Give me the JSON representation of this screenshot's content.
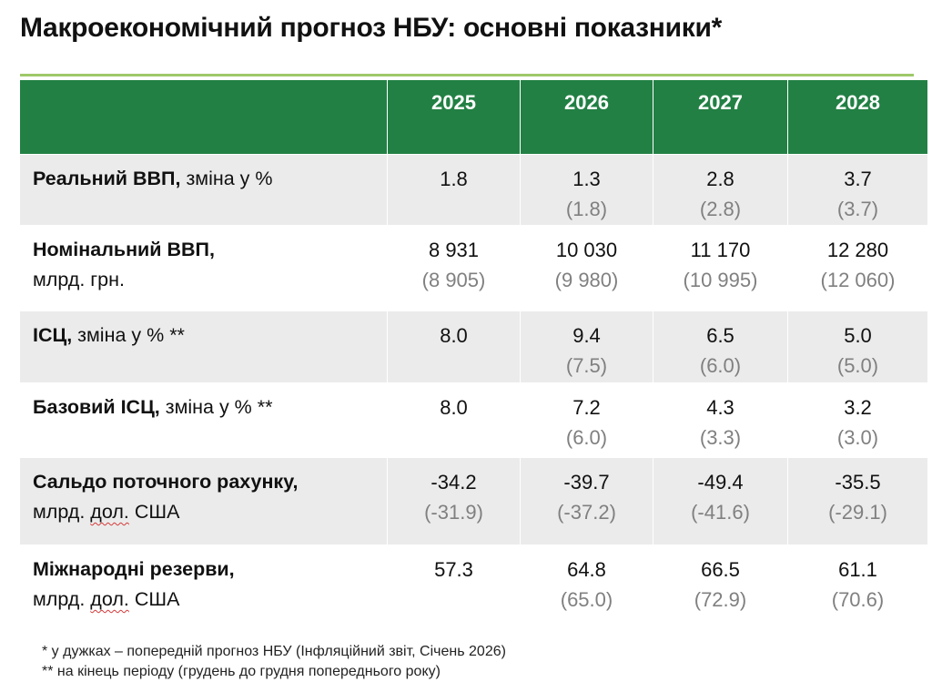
{
  "title": "Макроекономічний прогноз НБУ: основні показники*",
  "colors": {
    "header_green": "#228044",
    "title_rule": "#9fc86a",
    "row_band": "#ebebeb",
    "previous_value": "#808080"
  },
  "table": {
    "years": [
      "2025",
      "2026",
      "2027",
      "2028"
    ],
    "rows": [
      {
        "name_bold": "Реальний ВВП,",
        "name_rest": " зміна у %",
        "name_line2": "",
        "values": [
          "1.8",
          "1.3",
          "2.8",
          "3.7"
        ],
        "previous": [
          "",
          "(1.8)",
          "(2.8)",
          "(3.7)"
        ]
      },
      {
        "name_bold": "Номінальний ВВП,",
        "name_rest": "",
        "name_line2": "млрд. грн.",
        "values": [
          "8 931",
          "10 030",
          "11 170",
          "12 280"
        ],
        "previous": [
          "(8 905)",
          "(9 980)",
          "(10 995)",
          "(12 060)"
        ]
      },
      {
        "name_bold": "ІСЦ,",
        "name_rest": " зміна у % **",
        "name_line2": "",
        "values": [
          "8.0",
          "9.4",
          "6.5",
          "5.0"
        ],
        "previous": [
          "",
          "(7.5)",
          "(6.0)",
          "(5.0)"
        ]
      },
      {
        "name_bold": "Базовий ІСЦ,",
        "name_rest": " зміна у % **",
        "name_line2": "",
        "values": [
          "8.0",
          "7.2",
          "4.3",
          "3.2"
        ],
        "previous": [
          "",
          "(6.0)",
          "(3.3)",
          "(3.0)"
        ]
      },
      {
        "name_bold": "Сальдо поточного рахунку,",
        "name_rest": "",
        "name_line2_pre": "млрд. ",
        "name_line2_wavy": "дол.",
        "name_line2_post": " США",
        "values": [
          "-34.2",
          "-39.7",
          "-49.4",
          "-35.5"
        ],
        "previous": [
          "(-31.9)",
          "(-37.2)",
          "(-41.6)",
          "(-29.1)"
        ]
      },
      {
        "name_bold": "Міжнародні резерви,",
        "name_rest": "",
        "name_line2_pre": "млрд. ",
        "name_line2_wavy": "дол.",
        "name_line2_post": " США",
        "values": [
          "57.3",
          "64.8",
          "66.5",
          "61.1"
        ],
        "previous": [
          "",
          "(65.0)",
          "(72.9)",
          "(70.6)"
        ]
      }
    ]
  },
  "footnotes": [
    "* у дужках – попередній прогноз НБУ (Інфляційний звіт, Січень 2026)",
    "** на кінець періоду (грудень до грудня попереднього року)"
  ]
}
